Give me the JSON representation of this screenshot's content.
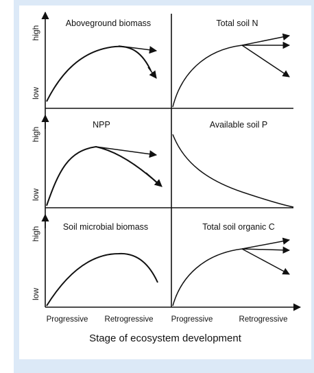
{
  "y_high": "high",
  "y_low": "low",
  "x_left": "Progressive",
  "x_right": "Retrogressive",
  "x_title": "Stage of ecosystem development",
  "colors": {
    "frame": "#dce9f7",
    "ink": "#111111"
  },
  "panels": [
    {
      "title": "Aboveground biomass",
      "curve": "hump",
      "arrows": [
        "flat",
        "down"
      ]
    },
    {
      "title": "Total soil N",
      "curve": "saturating",
      "arrows": [
        "up",
        "flat",
        "down"
      ]
    },
    {
      "title": "NPP",
      "curve": "hump",
      "arrows": [
        "flat",
        "down"
      ]
    },
    {
      "title": "Available soil P",
      "curve": "decline",
      "arrows": []
    },
    {
      "title": "Soil microbial biomass",
      "curve": "hump",
      "arrows": []
    },
    {
      "title": "Total soil organic C",
      "curve": "saturating",
      "arrows": [
        "up",
        "flat",
        "down"
      ]
    }
  ]
}
